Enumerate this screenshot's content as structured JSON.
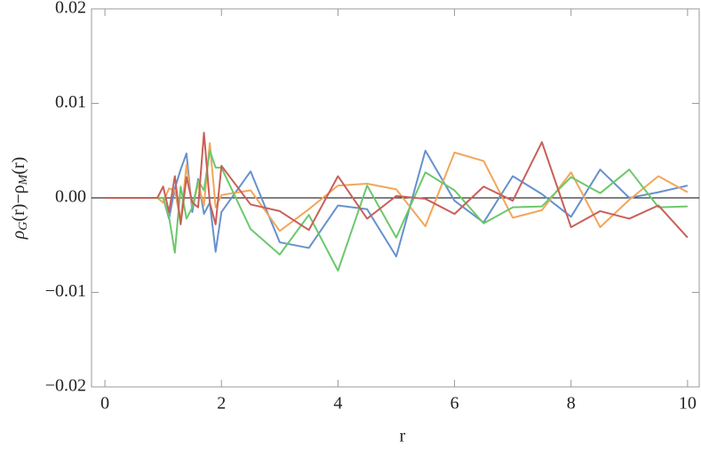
{
  "chart_data": {
    "type": "line",
    "x_label": "r",
    "y_label_parts": [
      "ρ",
      "G",
      "(r)−ρ",
      "M",
      "(r)"
    ],
    "x": [
      0,
      0.5,
      0.9,
      1.0,
      1.1,
      1.2,
      1.3,
      1.4,
      1.5,
      1.6,
      1.7,
      1.8,
      1.9,
      2.0,
      2.5,
      3,
      3.5,
      4,
      4.5,
      5,
      5.5,
      6,
      6.5,
      7,
      7.5,
      8,
      8.5,
      9,
      9.5,
      10
    ],
    "series": [
      {
        "color": "#6691cd",
        "values": [
          0,
          0,
          0,
          0,
          -0.0022,
          0.001,
          0.003,
          0.0047,
          -0.0015,
          0.002,
          -0.0017,
          -0.0005,
          -0.0057,
          -0.0015,
          0.0028,
          -0.0047,
          -0.0053,
          -0.0008,
          -0.0012,
          -0.0062,
          0.005,
          -0.0003,
          -0.0026,
          0.0023,
          0.0004,
          -0.002,
          0.003,
          0.0,
          0.0006,
          0.0013
        ]
      },
      {
        "color": "#f2a65a",
        "values": [
          0,
          0,
          0,
          -0.0005,
          0.001,
          0.0008,
          -0.0025,
          0.0035,
          -0.001,
          0.0015,
          -0.0008,
          0.0058,
          -0.001,
          0.0003,
          0.0008,
          -0.0035,
          -0.0012,
          0.0013,
          0.0015,
          0.0009,
          -0.003,
          0.0048,
          0.0039,
          -0.0021,
          -0.0013,
          0.0027,
          -0.0031,
          -0.0002,
          0.0023,
          0.0006
        ]
      },
      {
        "color": "#6cc86c",
        "values": [
          0,
          0,
          0,
          0,
          -0.002,
          -0.0058,
          0.0012,
          -0.0022,
          -0.001,
          0.0018,
          0.0008,
          0.005,
          0.0032,
          0.0032,
          -0.0033,
          -0.006,
          -0.0018,
          -0.0077,
          0.0013,
          -0.0042,
          0.0027,
          0.0008,
          -0.0027,
          -0.001,
          -0.0009,
          0.0022,
          0.0005,
          0.003,
          -0.001,
          -0.0009
        ]
      },
      {
        "color": "#c86058",
        "values": [
          0,
          0,
          0,
          0.0012,
          -0.0015,
          0.0023,
          -0.0028,
          0.0022,
          -0.0005,
          -0.001,
          0.0069,
          -0.0005,
          -0.0028,
          0.0034,
          -0.0007,
          -0.0014,
          -0.0034,
          0.0023,
          -0.0022,
          0.0002,
          -0.0001,
          -0.0017,
          0.0012,
          -0.0003,
          0.0059,
          -0.0031,
          -0.0014,
          -0.0022,
          -0.0008,
          -0.0042
        ]
      }
    ],
    "xlim": [
      -0.23,
      10.2
    ],
    "ylim": [
      -0.02,
      0.02
    ],
    "xticks": [
      0,
      2,
      4,
      6,
      8,
      10
    ],
    "yticks": [
      {
        "value": -0.02,
        "label": "−0.02"
      },
      {
        "value": -0.01,
        "label": "−0.01"
      },
      {
        "value": 0,
        "label": "0.00"
      },
      0.01,
      0.02
    ]
  }
}
